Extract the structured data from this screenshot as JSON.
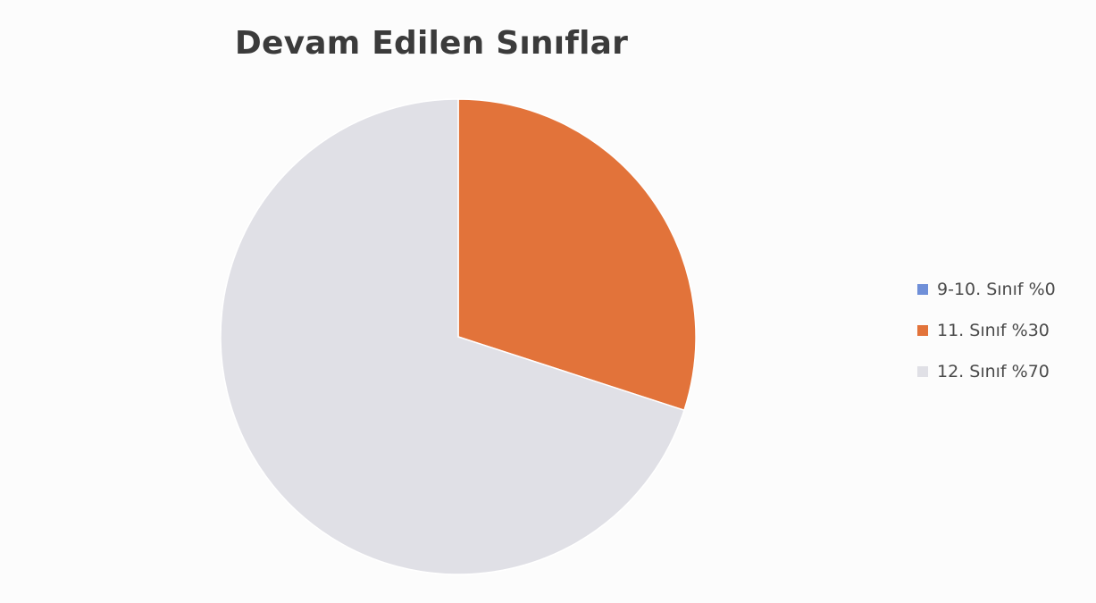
{
  "chart_data": {
    "type": "pie",
    "title": "Devam Edilen Sınıflar",
    "slices": [
      {
        "label": "9-10. Sınıf %0",
        "value": 0,
        "color": "#6f8fd8"
      },
      {
        "label": "11. Sınıf %30",
        "value": 30,
        "color": "#e2733a"
      },
      {
        "label": "12. Sınıf %70",
        "value": 70,
        "color": "#e0e0e6"
      }
    ],
    "start_angle_deg": 0,
    "direction": "clockwise",
    "legend_position": "right"
  }
}
